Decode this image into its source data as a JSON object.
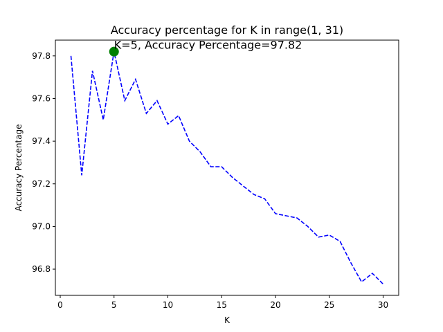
{
  "chart_data": {
    "type": "line",
    "title": "Accuracy percentage for K in range(1, 31)",
    "xlabel": "K",
    "ylabel": "Accuracy Percentage",
    "xlim": [
      -0.45,
      31.45
    ],
    "ylim": [
      96.677,
      97.874
    ],
    "x_ticks": [
      "0",
      "5",
      "10",
      "15",
      "20",
      "25",
      "30"
    ],
    "y_ticks": [
      "96.8",
      "97.0",
      "97.2",
      "97.4",
      "97.6",
      "97.8"
    ],
    "grid": false,
    "series": [
      {
        "line_style": "dashed",
        "color": "#0000ff",
        "x": [
          1,
          2,
          3,
          4,
          5,
          6,
          7,
          8,
          9,
          10,
          11,
          12,
          13,
          14,
          15,
          16,
          17,
          18,
          19,
          20,
          21,
          22,
          23,
          24,
          25,
          26,
          27,
          28,
          29,
          30
        ],
        "y": [
          97.8,
          97.24,
          97.73,
          97.5,
          97.82,
          97.59,
          97.69,
          97.53,
          97.59,
          97.48,
          97.52,
          97.4,
          97.35,
          97.28,
          97.28,
          97.23,
          97.19,
          97.15,
          97.13,
          97.06,
          97.05,
          97.04,
          97.0,
          96.95,
          96.96,
          96.93,
          96.83,
          96.74,
          96.78,
          96.73
        ]
      }
    ],
    "highlight": {
      "x": 5,
      "y": 97.82,
      "color": "#008000",
      "label": "K=5, Accuracy Percentage=97.82"
    }
  }
}
